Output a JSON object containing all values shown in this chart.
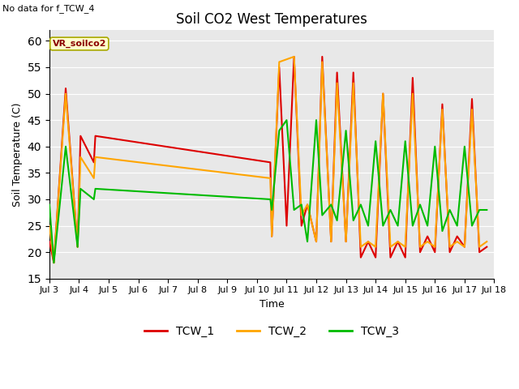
{
  "title": "Soil CO2 West Temperatures",
  "no_data_text": "No data for f_TCW_4",
  "annotation_text": "VR_soilco2",
  "xlabel": "Time",
  "ylabel": "Soil Temperature (C)",
  "ylim": [
    15,
    62
  ],
  "yticks": [
    15,
    20,
    25,
    30,
    35,
    40,
    45,
    50,
    55,
    60
  ],
  "colors": {
    "TCW_1": "#dd0000",
    "TCW_2": "#ffa500",
    "TCW_3": "#00bb00"
  },
  "background_color": "#e8e8e8",
  "x_day_labels": [
    "Jul 3",
    "Jul 4",
    "Jul 5",
    "Jul 6",
    "Jul 7",
    "Jul 8",
    "Jul 9",
    "Jul 10",
    "Jul 11",
    "Jul 12",
    "Jul 13",
    "Jul 14",
    "Jul 15",
    "Jul 16",
    "Jul 17",
    "Jul 18"
  ],
  "TCW_1_x": [
    3.0,
    3.15,
    3.55,
    3.95,
    4.05,
    4.5,
    4.55,
    10.45,
    10.5,
    10.75,
    11.0,
    11.25,
    11.5,
    11.7,
    12.0,
    12.2,
    12.5,
    12.7,
    13.0,
    13.25,
    13.5,
    13.75,
    14.0,
    14.25,
    14.5,
    14.75,
    15.0,
    15.25,
    15.5,
    15.75,
    16.0,
    16.25,
    16.5,
    16.75,
    17.0,
    17.25,
    17.5,
    17.75
  ],
  "TCW_1_y": [
    22,
    18,
    51,
    21,
    42,
    37,
    42,
    37,
    23,
    55,
    25,
    57,
    25,
    29,
    22,
    57,
    22,
    54,
    22,
    54,
    19,
    22,
    19,
    50,
    19,
    22,
    19,
    53,
    20,
    23,
    20,
    48,
    20,
    23,
    21,
    49,
    20,
    21
  ],
  "TCW_2_x": [
    3.0,
    3.15,
    3.55,
    3.95,
    4.05,
    4.5,
    4.55,
    10.45,
    10.5,
    10.75,
    11.25,
    11.5,
    11.7,
    12.0,
    12.2,
    12.5,
    12.7,
    13.0,
    13.25,
    13.5,
    13.75,
    14.0,
    14.25,
    14.5,
    14.75,
    15.0,
    15.25,
    15.5,
    15.75,
    16.0,
    16.25,
    16.5,
    16.75,
    17.0,
    17.25,
    17.5,
    17.75
  ],
  "TCW_2_y": [
    25,
    18,
    50,
    21,
    38,
    34,
    38,
    34,
    23,
    56,
    57,
    27,
    29,
    22,
    56,
    22,
    52,
    22,
    52,
    21,
    22,
    21,
    50,
    21,
    22,
    21,
    50,
    21,
    22,
    21,
    47,
    21,
    22,
    21,
    47,
    21,
    22
  ],
  "TCW_3_x": [
    3.0,
    3.15,
    3.55,
    3.95,
    4.05,
    4.5,
    4.55,
    10.45,
    10.5,
    10.75,
    11.0,
    11.25,
    11.5,
    11.7,
    12.0,
    12.2,
    12.5,
    12.7,
    13.0,
    13.25,
    13.5,
    13.75,
    14.0,
    14.25,
    14.5,
    14.75,
    15.0,
    15.25,
    15.5,
    15.75,
    16.0,
    16.25,
    16.5,
    16.75,
    17.0,
    17.25,
    17.5,
    17.75
  ],
  "TCW_3_y": [
    29,
    18,
    40,
    21,
    32,
    30,
    32,
    30,
    28,
    43,
    45,
    28,
    29,
    22,
    45,
    27,
    29,
    26,
    43,
    26,
    29,
    25,
    41,
    25,
    28,
    25,
    41,
    25,
    29,
    25,
    40,
    24,
    28,
    25,
    40,
    25,
    28,
    28
  ]
}
